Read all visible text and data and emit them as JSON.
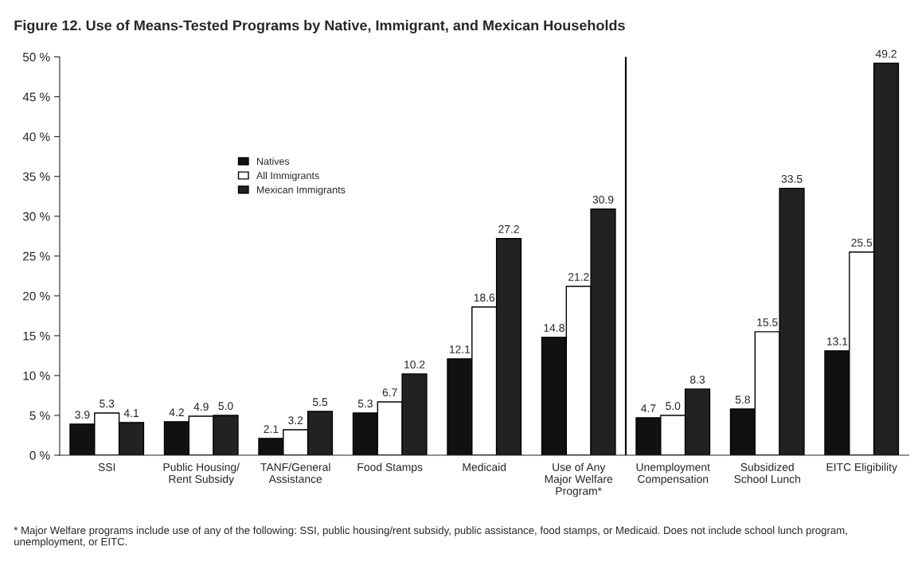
{
  "chart_data": {
    "type": "bar",
    "title": "Figure 12. Use of Means-Tested Programs by Native, Immigrant, and Mexican Households",
    "categories": [
      "SSI",
      "Public Housing/\nRent Subsidy",
      "TANF/General\nAssistance",
      "Food Stamps",
      "Medicaid",
      "Use of Any\nMajor Welfare\nProgram*",
      "Unemployment\nCompensation",
      "Subsidized\nSchool Lunch",
      "EITC Eligibility"
    ],
    "series": [
      {
        "name": "Natives",
        "color": "#111111",
        "values": [
          3.9,
          4.2,
          2.1,
          5.3,
          12.1,
          14.8,
          4.7,
          5.8,
          13.1
        ],
        "value_labels": [
          "3.9",
          "4.2",
          "2.1",
          "5.3",
          "12.1",
          "14.8",
          "4.7",
          "5.8",
          "13.1"
        ]
      },
      {
        "name": "All Immigrants",
        "color": "#ffffff",
        "values": [
          5.3,
          4.9,
          3.2,
          6.7,
          18.6,
          21.2,
          5.0,
          15.5,
          25.5
        ],
        "value_labels": [
          "5.3",
          "4.9",
          "3.2",
          "6.7",
          "18.6",
          "21.2",
          "5.0",
          "15.5",
          "25.5"
        ]
      },
      {
        "name": "Mexican Immigrants",
        "color": "#222222",
        "values": [
          4.1,
          5.0,
          5.5,
          10.2,
          27.2,
          30.9,
          8.3,
          33.5,
          49.2
        ],
        "value_labels": [
          "4.1",
          "5.0",
          "5.5",
          "10.2",
          "27.2",
          "30.9",
          "8.3",
          "33.5",
          "49.2"
        ]
      }
    ],
    "ylim": [
      0,
      50
    ],
    "yticks": [
      {
        "value": 0,
        "label": "0 %"
      },
      {
        "value": 5,
        "label": "5 %"
      },
      {
        "value": 10,
        "label": "10 %"
      },
      {
        "value": 15,
        "label": "15 %"
      },
      {
        "value": 20,
        "label": "20 %"
      },
      {
        "value": 25,
        "label": "25 %"
      },
      {
        "value": 30,
        "label": "30 %"
      },
      {
        "value": 35,
        "label": "35 %"
      },
      {
        "value": 40,
        "label": "40 %"
      },
      {
        "value": 45,
        "label": "45 %"
      },
      {
        "value": 50,
        "label": "50 %"
      }
    ],
    "grid": false,
    "legend": "left",
    "annotations": [
      "* Major Welfare programs include use of any of the following: SSI, public housing/rent subsidy, public assistance, food stamps, or Medicaid. Does not include school lunch program, unemployment, or EITC."
    ]
  }
}
